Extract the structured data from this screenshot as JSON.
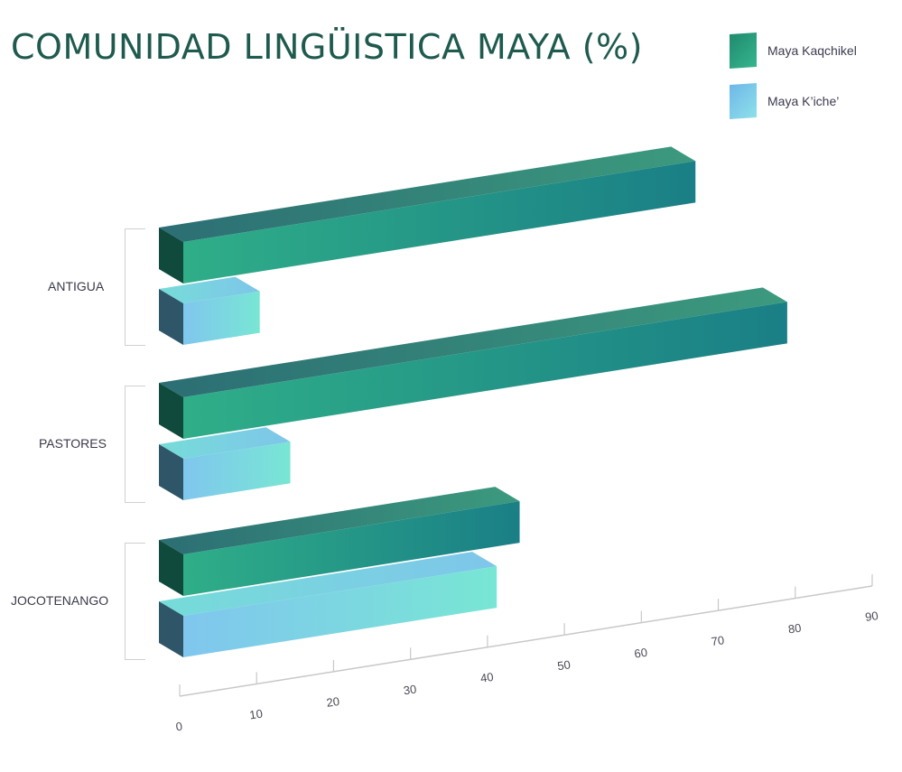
{
  "chart_data": {
    "type": "bar",
    "orientation": "horizontal",
    "title": "COMUNIDAD LINGÜISTICA MAYA (%)",
    "categories": [
      "ANTIGUA",
      "PASTORES",
      "JOCOTENANGO"
    ],
    "series": [
      {
        "name": "Maya Kaqchikel",
        "values": [
          67,
          79,
          44
        ],
        "color": "#2e9e8a"
      },
      {
        "name": "Maya K’iche’",
        "values": [
          10,
          14,
          41
        ],
        "color": "#7fcdea"
      }
    ],
    "x_ticks": [
      "0",
      "10",
      "20",
      "30",
      "40",
      "50",
      "60",
      "70",
      "80",
      "90"
    ],
    "xlim": [
      0,
      90
    ],
    "legend": "top-right",
    "grid": false
  },
  "colors": {
    "title": "#1f5a4e",
    "kaq_front_start": "#2fae88",
    "kaq_front_end": "#1a7f86",
    "kaq_top": "#3a9a82",
    "kaq_end": "#0f4a3c",
    "kiche_front_start": "#7ec8ee",
    "kiche_front_end": "#78e6d6",
    "kiche_top": "#7ad6dc",
    "kiche_end": "#2f5668"
  }
}
